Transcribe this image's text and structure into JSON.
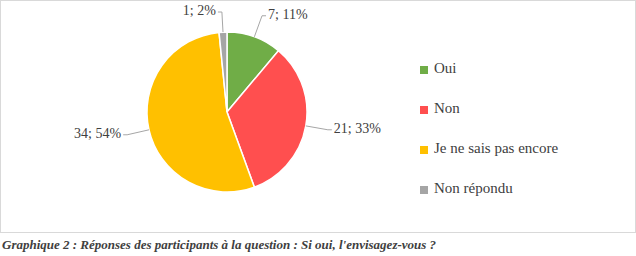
{
  "chart_data": {
    "type": "pie",
    "categories": [
      "Oui",
      "Non",
      "Je ne sais pas encore",
      "Non répondu"
    ],
    "values": [
      7,
      21,
      34,
      1
    ],
    "value_labels": [
      "7; 11%",
      "21; 33%",
      "34; 54%",
      "1; 2%"
    ],
    "colors": [
      "#70ad47",
      "#ff4f4f",
      "#ffc000",
      "#a5a5a5"
    ],
    "data_labels": true,
    "legend": "right",
    "caption": "Graphique 2 : Réponses des participants à la question : Si oui, l'envisagez-vous ?"
  }
}
